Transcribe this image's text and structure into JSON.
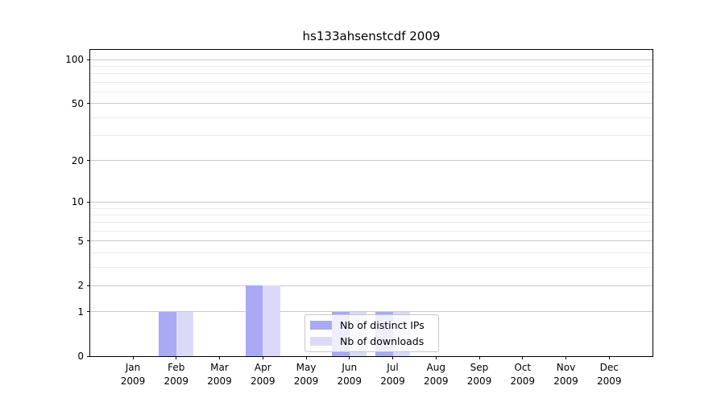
{
  "title": "hs133ahsenstcdf 2009",
  "colors": {
    "background": "#ffffff",
    "axis": "#000000",
    "grid_major": "#c9c9c9",
    "grid_minor": "#ebebeb",
    "legend_border": "#c8c8c8",
    "legend_background": "rgba(255,255,255,0.8)"
  },
  "chart_data": {
    "type": "bar",
    "title": "hs133ahsenstcdf 2009",
    "categories": [
      "Jan",
      "Feb",
      "Mar",
      "Apr",
      "May",
      "Jun",
      "Jul",
      "Aug",
      "Sep",
      "Oct",
      "Nov",
      "Dec"
    ],
    "year": "2009",
    "series": [
      {
        "name": "Nb of distinct IPs",
        "color": "#a9a9f5",
        "values": [
          0,
          1,
          0,
          2,
          0,
          1,
          1,
          0,
          0,
          0,
          0,
          0
        ]
      },
      {
        "name": "Nb of downloads",
        "color": "#dadaf8",
        "values": [
          0,
          1,
          0,
          2,
          0,
          1,
          1,
          0,
          0,
          0,
          0,
          0
        ]
      }
    ],
    "xlabel": "",
    "ylabel": "",
    "yscale": "log1p",
    "ylim": [
      0,
      116
    ],
    "y_major_ticks": [
      0,
      1,
      2,
      5,
      10,
      20,
      50,
      100
    ],
    "y_minor_ticks": [
      3,
      4,
      6,
      7,
      8,
      9,
      30,
      40,
      60,
      70,
      80,
      90
    ],
    "grid": true,
    "legend_position": "lower center"
  }
}
